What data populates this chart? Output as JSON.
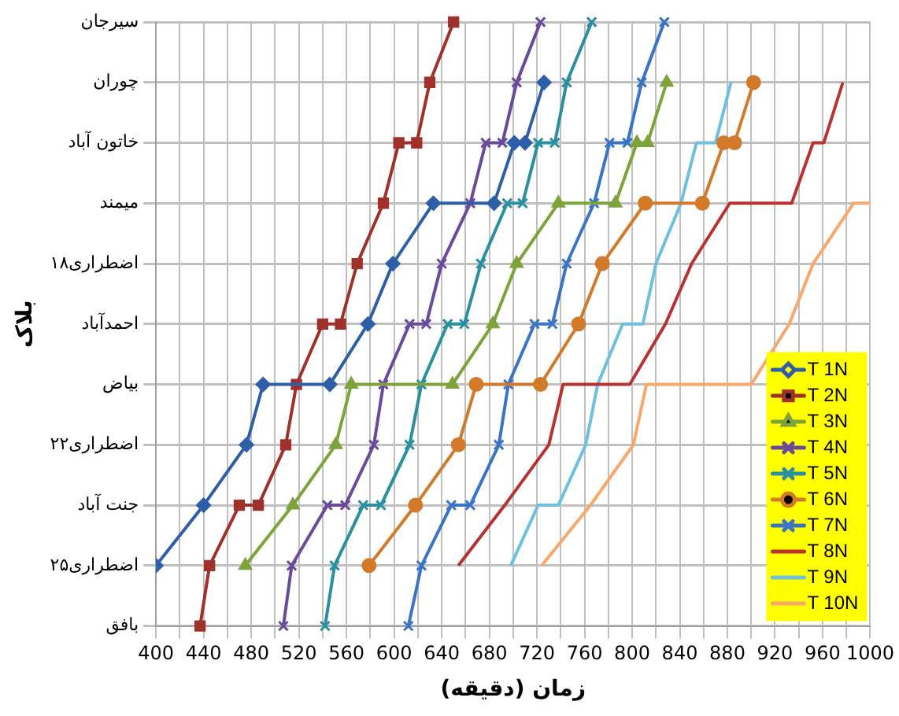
{
  "chart_data": {
    "type": "line",
    "orientation": "horizontal",
    "xlabel": "زمان (دقیقه)",
    "ylabel": "بلاک",
    "categories": [
      "سیرجان",
      "چوران",
      "خاتون آباد",
      "میمند",
      "اضطراری۱۸",
      "احمدآباد",
      "بیاض",
      "اضطراری۲۲",
      "جنت آباد",
      "اضطراری۲۵",
      "بافق"
    ],
    "xlim": [
      400,
      1000
    ],
    "xticks": [
      400,
      {
        "value": 420,
        "label": null
      },
      440,
      {
        "value": 460,
        "label": null
      },
      480,
      {
        "value": 500,
        "label": null
      },
      520,
      {
        "value": 540,
        "label": null
      },
      560,
      {
        "value": 580,
        "label": null
      },
      600,
      {
        "value": 620,
        "label": null
      },
      640,
      {
        "value": 660,
        "label": null
      },
      680,
      {
        "value": 700,
        "label": null
      },
      720,
      {
        "value": 740,
        "label": null
      },
      760,
      {
        "value": 780,
        "label": null
      },
      800,
      {
        "value": 820,
        "label": null
      },
      840,
      {
        "value": 860,
        "label": null
      },
      880,
      {
        "value": 900,
        "label": null
      },
      920,
      {
        "value": 940,
        "label": null
      },
      960,
      {
        "value": 980,
        "label": null
      },
      1000
    ],
    "grid": true,
    "legend": "bottom right",
    "series": [
      {
        "name": "T 1N",
        "color": "#2e5ea8",
        "marker": "diamond",
        "values": [
          400,
          440,
          476,
          490,
          546,
          578,
          599,
          633,
          684,
          701,
          710,
          726
        ],
        "x": [
          "اضطراری۲۵",
          "جنت آباد",
          "اضطراری۲۲",
          "بیاض",
          "بیاض",
          "احمدآباد",
          "اضطراری۱۸",
          "میمند",
          "میمند",
          "خاتون آباد",
          "خاتون آباد",
          "چوران"
        ]
      },
      {
        "name": "T 2N",
        "color": "#a0302a",
        "marker": "square",
        "values": [
          437,
          445,
          470,
          486,
          509,
          518,
          540,
          555,
          569,
          591,
          604,
          619,
          630,
          650
        ],
        "x": [
          "بافق",
          "اضطراری۲۵",
          "جنت آباد",
          "جنت آباد",
          "اضطراری۲۲",
          "بیاض",
          "احمدآباد",
          "احمدآباد",
          "اضطراری۱۸",
          "میمند",
          "خاتون آباد",
          "خاتون آباد",
          "چوران",
          "سیرجان"
        ]
      },
      {
        "name": "T 3N",
        "color": "#7ea33a",
        "marker": "triangle",
        "values": [
          475,
          515,
          551,
          564,
          649,
          683,
          703,
          738,
          786,
          804,
          813,
          829
        ],
        "x": [
          "اضطراری۲۵",
          "جنت آباد",
          "اضطراری۲۲",
          "بیاض",
          "بیاض",
          "احمدآباد",
          "اضطراری۱۸",
          "میمند",
          "میمند",
          "خاتون آباد",
          "خاتون آباد",
          "چوران"
        ]
      },
      {
        "name": "T 4N",
        "color": "#6a4a9a",
        "marker": "cross",
        "values": [
          507,
          514,
          544,
          559,
          583,
          591,
          613,
          627,
          640,
          664,
          677,
          691,
          703,
          723
        ],
        "x": [
          "بافق",
          "اضطراری۲۵",
          "جنت آباد",
          "جنت آباد",
          "اضطراری۲۲",
          "بیاض",
          "احمدآباد",
          "احمدآباد",
          "اضطراری۱۸",
          "میمند",
          "خاتون آباد",
          "خاتون آباد",
          "چوران",
          "سیرجان"
        ]
      },
      {
        "name": "T 5N",
        "color": "#2a8f9e",
        "marker": "cross",
        "values": [
          542,
          550,
          574,
          589,
          613,
          623,
          645,
          659,
          673,
          695,
          708,
          721,
          735,
          745,
          766
        ],
        "x": [
          "بافق",
          "اضطراری۲۵",
          "جنت آباد",
          "جنت آباد",
          "اضطراری۲۲",
          "بیاض",
          "احمدآباد",
          "احمدآباد",
          "اضطراری۱۸",
          "میمند",
          "میمند",
          "خاتون آباد",
          "خاتون آباد",
          "چوران",
          "سیرجان"
        ]
      },
      {
        "name": "T 6N",
        "color": "#d2792a",
        "marker": "circle",
        "values": [
          579,
          618,
          654,
          669,
          723,
          755,
          775,
          811,
          859,
          877,
          886,
          902
        ],
        "x": [
          "اضطراری۲۵",
          "جنت آباد",
          "اضطراری۲۲",
          "بیاض",
          "بیاض",
          "احمدآباد",
          "اضطراری۱۸",
          "میمند",
          "میمند",
          "خاتون آباد",
          "خاتون آباد",
          "چوران"
        ]
      },
      {
        "name": "T 7N",
        "color": "#3a74c4",
        "marker": "cross",
        "values": [
          612,
          623,
          648,
          664,
          688,
          696,
          718,
          733,
          745,
          768,
          781,
          796,
          808,
          827
        ],
        "x": [
          "بافق",
          "اضطراری۲۵",
          "جنت آباد",
          "جنت آباد",
          "اضطراری۲۲",
          "بیاض",
          "احمدآباد",
          "احمدآباد",
          "اضطراری۱۸",
          "میمند",
          "خاتون آباد",
          "خاتون آباد",
          "چوران",
          "سیرجان"
        ]
      },
      {
        "name": "T 8N",
        "color": "#b83232",
        "marker": "none",
        "values": [
          654,
          693,
          730,
          742,
          798,
          828,
          850,
          882,
          934,
          952,
          961,
          977
        ],
        "x": [
          "اضطراری۲۵",
          "جنت آباد",
          "اضطراری۲۲",
          "بیاض",
          "بیاض",
          "احمدآباد",
          "اضطراری۱۸",
          "میمند",
          "میمند",
          "خاتون آباد",
          "خاتون آباد",
          "چوران"
        ]
      },
      {
        "name": "T 9N",
        "color": "#6ec0e0",
        "marker": "none",
        "values": [
          698,
          721,
          738,
          761,
          771,
          792,
          809,
          820,
          841,
          854,
          870,
          883
        ],
        "x": [
          "اضطراری۲۵",
          "جنت آباد",
          "جنت آباد",
          "اضطراری۲۲",
          "بیاض",
          "احمدآباد",
          "احمدآباد",
          "اضطراری۱۸",
          "میمند",
          "خاتون آباد",
          "خاتون آباد",
          "چوران"
        ]
      },
      {
        "name": "T 10N",
        "color": "#f9a86a",
        "marker": "none",
        "values": [
          724,
          765,
          801,
          812,
          900,
          932,
          952,
          986,
          1000
        ],
        "x": [
          "اضطراری۲۵",
          "جنت آباد",
          "اضطراری۲۲",
          "بیاض",
          "بیاض",
          "احمدآباد",
          "اضطراری۱۸",
          "میمند",
          "میمند"
        ]
      }
    ]
  }
}
